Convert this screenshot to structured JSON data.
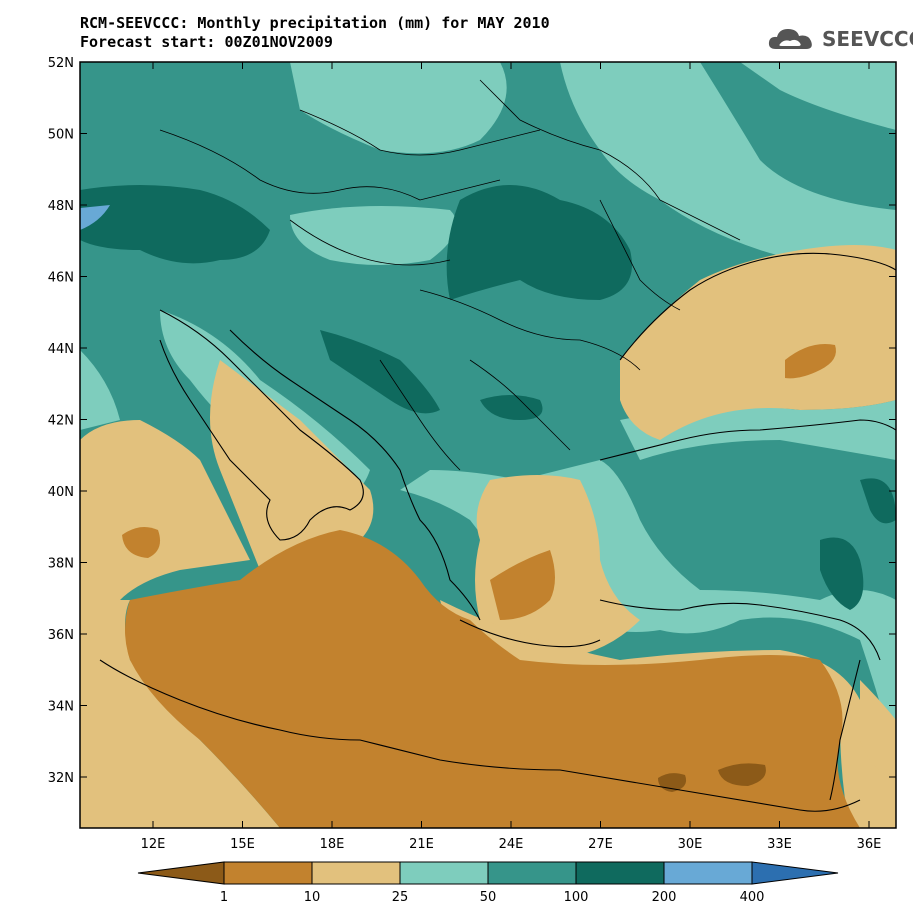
{
  "header": {
    "title_line1": "RCM-SEEVCCC: Monthly precipitation (mm) for MAY 2010",
    "title_line2": "Forecast start: 00Z01NOV2009"
  },
  "logo": {
    "text": "SEEVCCC",
    "icon": "cloud-icon"
  },
  "map": {
    "lat_labels": [
      "52N",
      "50N",
      "48N",
      "46N",
      "44N",
      "42N",
      "40N",
      "38N",
      "36N",
      "34N",
      "32N"
    ],
    "lon_labels": [
      "12E",
      "15E",
      "18E",
      "21E",
      "24E",
      "27E",
      "30E",
      "33E",
      "36E"
    ]
  },
  "legend": {
    "boundaries": [
      "1",
      "10",
      "25",
      "50",
      "100",
      "200",
      "400"
    ],
    "colors": [
      "#8c5a18",
      "#c2822e",
      "#e2c17d",
      "#7ecdbd",
      "#36958a",
      "#0f6a5e",
      "#68a9d6",
      "#2c6fb0"
    ]
  }
}
